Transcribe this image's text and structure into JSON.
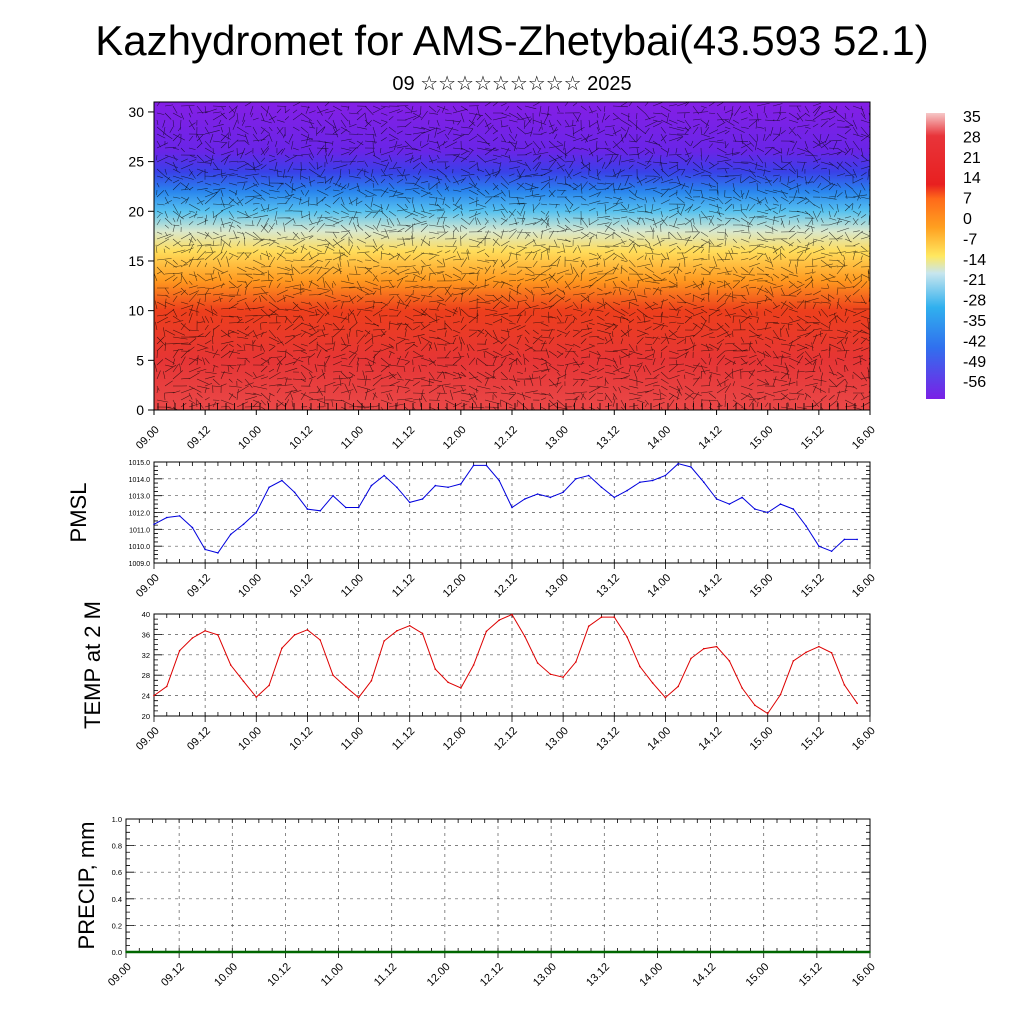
{
  "page": {
    "title": "Kazhydromet for AMS-Zhetybai(43.593 52.1)",
    "subtitle": "09 ☆☆☆☆☆☆☆☆☆ 2025"
  },
  "colors": {
    "pmsl_line": "#0000dd",
    "temp_line": "#dd0000",
    "precip_line": "#006600",
    "colorbar": [
      "#f5c0c0",
      "#e8343a",
      "#ff6a1a",
      "#ffa020",
      "#ffe860",
      "#c8e6ee",
      "#30b0ee",
      "#3070ee",
      "#7a20e6"
    ]
  },
  "x_tick_labels": [
    "09.00",
    "09.12",
    "10.00",
    "10.12",
    "11.00",
    "11.12",
    "12.00",
    "12.12",
    "13.00",
    "13.12",
    "14.00",
    "14.12",
    "15.00",
    "15.12",
    "16.00"
  ],
  "chart_data": [
    {
      "type": "heatmap",
      "name_key": "cross-section",
      "ylim": [
        0,
        31
      ],
      "yticks": [
        0,
        5,
        10,
        15,
        20,
        25,
        30
      ],
      "x_categories": [
        "09.00",
        "09.12",
        "10.00",
        "10.12",
        "11.00",
        "11.12",
        "12.00",
        "12.12",
        "13.00",
        "13.12",
        "14.00",
        "14.12",
        "15.00",
        "15.12",
        "16.00"
      ],
      "temperature_by_height": [
        {
          "h": 0,
          "t": 30
        },
        {
          "h": 5,
          "t": 26
        },
        {
          "h": 10,
          "t": 18
        },
        {
          "h": 13,
          "t": 8
        },
        {
          "h": 16,
          "t": -3
        },
        {
          "h": 18,
          "t": -12
        },
        {
          "h": 20,
          "t": -22
        },
        {
          "h": 22,
          "t": -32
        },
        {
          "h": 24,
          "t": -42
        },
        {
          "h": 26,
          "t": -52
        },
        {
          "h": 31,
          "t": -58
        }
      ],
      "colorbar_labels": [
        "35",
        "28",
        "21",
        "14",
        "7",
        "0",
        "-7",
        "-14",
        "-21",
        "-28",
        "-35",
        "-42",
        "-49",
        "-56"
      ]
    },
    {
      "type": "line",
      "ylabel": "PMSL",
      "ylim": [
        1009.0,
        1015.0
      ],
      "yticks": [
        "1009.0",
        "1010.0",
        "1011.0",
        "1012.0",
        "1013.0",
        "1014.0",
        "1015.0"
      ],
      "x_hours": [
        0,
        3,
        6,
        9,
        12,
        15,
        18,
        21,
        24,
        27,
        30,
        33,
        36,
        39,
        42,
        45,
        48,
        51,
        54,
        57,
        60,
        63,
        66,
        69,
        72,
        75,
        78,
        81,
        84,
        87,
        90,
        93,
        96,
        99,
        102,
        105,
        108,
        111,
        114,
        117,
        120,
        123,
        126,
        129,
        132,
        135,
        138,
        141,
        144,
        147,
        150,
        153,
        156,
        159,
        162,
        165
      ],
      "values": [
        1011.3,
        1011.7,
        1011.8,
        1011.1,
        1009.8,
        1009.6,
        1010.7,
        1011.3,
        1012.0,
        1013.5,
        1013.9,
        1013.2,
        1012.2,
        1012.1,
        1013.0,
        1012.3,
        1012.3,
        1013.6,
        1014.2,
        1013.5,
        1012.6,
        1012.8,
        1013.6,
        1013.5,
        1013.7,
        1014.8,
        1014.8,
        1013.9,
        1012.3,
        1012.8,
        1013.1,
        1012.9,
        1013.2,
        1014.0,
        1014.2,
        1013.5,
        1012.9,
        1013.3,
        1013.8,
        1013.9,
        1014.2,
        1014.9,
        1014.7,
        1013.8,
        1012.8,
        1012.5,
        1012.9,
        1012.2,
        1012.0,
        1012.5,
        1012.2,
        1011.2,
        1010.0,
        1009.7,
        1010.4,
        1010.4
      ]
    },
    {
      "type": "line",
      "ylabel": "TEMP at 2 M",
      "ylim": [
        20,
        40
      ],
      "yticks": [
        "20",
        "24",
        "28",
        "32",
        "36",
        "40"
      ],
      "x_hours": [
        0,
        3,
        6,
        9,
        12,
        15,
        18,
        21,
        24,
        27,
        30,
        33,
        36,
        39,
        42,
        45,
        48,
        51,
        54,
        57,
        60,
        63,
        66,
        69,
        72,
        75,
        78,
        81,
        84,
        87,
        90,
        93,
        96,
        99,
        102,
        105,
        108,
        111,
        114,
        117,
        120,
        123,
        126,
        129,
        132,
        135,
        138,
        141,
        144,
        147,
        150,
        153,
        156,
        159,
        162,
        165
      ],
      "values": [
        24.0,
        25.8,
        32.8,
        35.3,
        36.7,
        35.9,
        30.0,
        26.8,
        23.7,
        26.0,
        33.3,
        35.9,
        36.9,
        34.9,
        28.0,
        25.7,
        23.6,
        26.9,
        34.7,
        36.7,
        37.7,
        36.2,
        29.2,
        26.6,
        25.5,
        30.0,
        36.6,
        38.8,
        39.9,
        35.6,
        30.4,
        28.2,
        27.6,
        30.6,
        37.6,
        39.4,
        39.4,
        35.5,
        29.7,
        26.5,
        23.6,
        25.8,
        31.3,
        33.2,
        33.6,
        30.8,
        25.5,
        22.1,
        20.5,
        24.2,
        30.8,
        32.5,
        33.6,
        32.4,
        26.1,
        22.5
      ]
    },
    {
      "type": "line",
      "ylabel": "PRECIP, mm",
      "ylim": [
        0,
        1
      ],
      "yticks": [
        "0.0",
        "0.2",
        "0.4",
        "0.6",
        "0.8",
        "1.0"
      ],
      "x_hours": [
        0,
        168
      ],
      "values": [
        0,
        0
      ]
    }
  ]
}
